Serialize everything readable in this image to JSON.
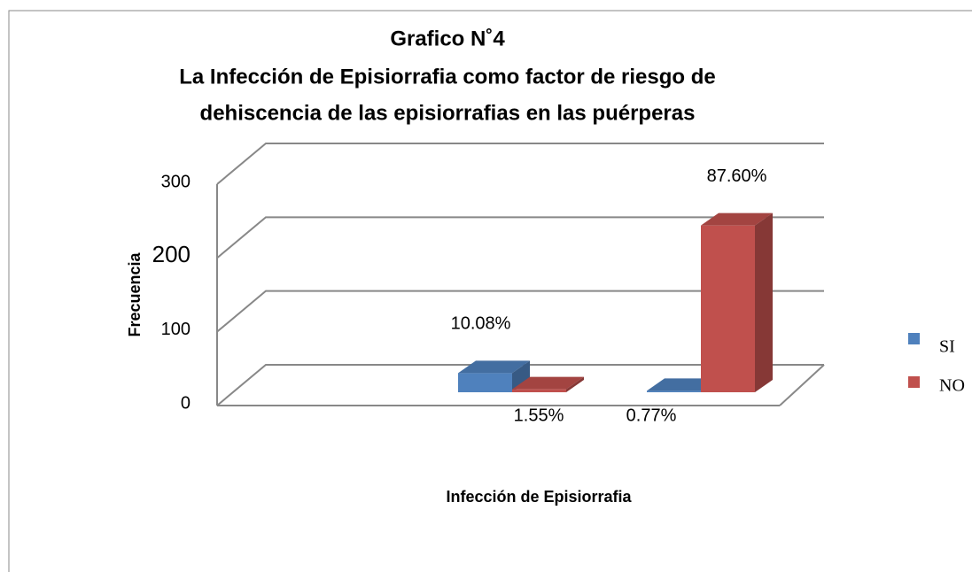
{
  "chart_data": {
    "type": "bar3d",
    "title": [
      "Grafico N˚4",
      "La Infección de Episiorrafia como factor de riesgo de",
      "dehiscencia de las episiorrafias en las puérperas"
    ],
    "y_label": "Frecuencia",
    "x_label": "Infección de Episiorrafia",
    "categories": [
      null,
      null
    ],
    "series": [
      {
        "name": "SI",
        "color": "#4f81bd",
        "values": [
          26,
          2
        ],
        "value_labels": [
          "10.08%",
          "0.77%"
        ]
      },
      {
        "name": "NO",
        "color": "#c0504d",
        "values": [
          4,
          226
        ],
        "value_labels": [
          "1.55%",
          "87.60%"
        ]
      }
    ],
    "ylim": [
      0,
      300
    ],
    "yticks": [
      0,
      100,
      200,
      300
    ],
    "grid": true,
    "legend": "right"
  }
}
